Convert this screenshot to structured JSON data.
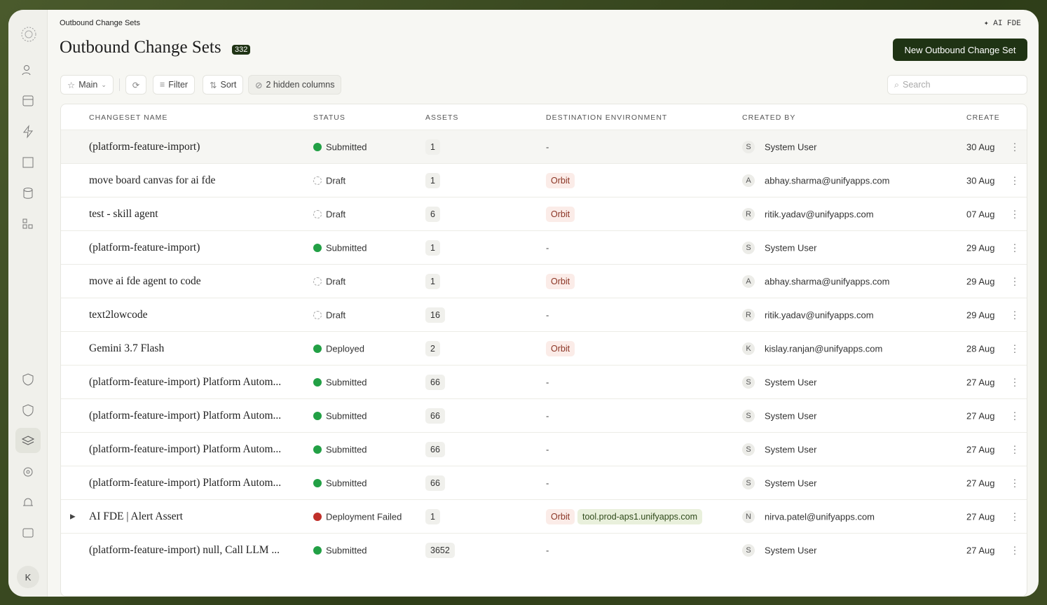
{
  "breadcrumb": "Outbound Change Sets",
  "assistant": "✦ AI FDE",
  "header": {
    "title": "Outbound Change Sets",
    "count": "332",
    "primary_button": "New Outbound Change Set"
  },
  "toolbar": {
    "view": "Main",
    "filter": "Filter",
    "sort": "Sort",
    "hidden_columns": "2 hidden columns",
    "search_placeholder": "Search"
  },
  "user_initial": "K",
  "table": {
    "columns": [
      "CHANGESET NAME",
      "STATUS",
      "ASSETS",
      "DESTINATION ENVIRONMENT",
      "CREATED BY",
      "CREATED"
    ],
    "rows": [
      {
        "name": "(platform-feature-import)",
        "status": "Submitted",
        "status_color": "#22a045",
        "assets": "1",
        "destination": "-",
        "avatar": "S",
        "created_by": "System User",
        "created": "30 Aug"
      },
      {
        "name": "move board canvas for ai fde",
        "status": "Draft",
        "status_color": "draft",
        "assets": "1",
        "destination": [
          {
            "label": "Orbit",
            "color": "#fbece8",
            "text_color": "#8a3424"
          }
        ],
        "avatar": "A",
        "created_by": "abhay.sharma@unifyapps.com",
        "created": "30 Aug"
      },
      {
        "name": "test - skill agent",
        "status": "Draft",
        "status_color": "draft",
        "assets": "6",
        "destination": [
          {
            "label": "Orbit",
            "color": "#fbece8",
            "text_color": "#8a3424"
          }
        ],
        "avatar": "R",
        "created_by": "ritik.yadav@unifyapps.com",
        "created": "07 Aug"
      },
      {
        "name": "(platform-feature-import)",
        "status": "Submitted",
        "status_color": "#22a045",
        "assets": "1",
        "destination": "-",
        "avatar": "S",
        "created_by": "System User",
        "created": "29 Aug"
      },
      {
        "name": "move ai fde agent to code",
        "status": "Draft",
        "status_color": "draft",
        "assets": "1",
        "destination": [
          {
            "label": "Orbit",
            "color": "#fbece8",
            "text_color": "#8a3424"
          }
        ],
        "avatar": "A",
        "created_by": "abhay.sharma@unifyapps.com",
        "created": "29 Aug"
      },
      {
        "name": "text2lowcode",
        "status": "Draft",
        "status_color": "draft",
        "assets": "16",
        "destination": "-",
        "avatar": "R",
        "created_by": "ritik.yadav@unifyapps.com",
        "created": "29 Aug"
      },
      {
        "name": "Gemini 3.7 Flash",
        "status": "Deployed",
        "status_color": "#22a045",
        "assets": "2",
        "destination": [
          {
            "label": "Orbit",
            "color": "#fbece8",
            "text_color": "#8a3424"
          }
        ],
        "avatar": "K",
        "created_by": "kislay.ranjan@unifyapps.com",
        "created": "28 Aug"
      },
      {
        "name": "(platform-feature-import) Platform Autom...",
        "status": "Submitted",
        "status_color": "#22a045",
        "assets": "66",
        "destination": "-",
        "avatar": "S",
        "created_by": "System User",
        "created": "27 Aug"
      },
      {
        "name": "(platform-feature-import) Platform Autom...",
        "status": "Submitted",
        "status_color": "#22a045",
        "assets": "66",
        "destination": "-",
        "avatar": "S",
        "created_by": "System User",
        "created": "27 Aug"
      },
      {
        "name": "(platform-feature-import) Platform Autom...",
        "status": "Submitted",
        "status_color": "#22a045",
        "assets": "66",
        "destination": "-",
        "avatar": "S",
        "created_by": "System User",
        "created": "27 Aug"
      },
      {
        "name": "(platform-feature-import) Platform Autom...",
        "status": "Submitted",
        "status_color": "#22a045",
        "assets": "66",
        "destination": "-",
        "avatar": "S",
        "created_by": "System User",
        "created": "27 Aug"
      },
      {
        "name": "AI FDE | Alert Assert",
        "expandable": true,
        "status": "Deployment Failed",
        "status_color": "#c0302a",
        "assets": "1",
        "destination": [
          {
            "label": "Orbit",
            "color": "#fbece8",
            "text_color": "#8a3424"
          },
          {
            "label": "tool.prod-aps1.unifyapps.com",
            "color": "#e9f0dc",
            "text_color": "#2f4a1a"
          }
        ],
        "avatar": "N",
        "created_by": "nirva.patel@unifyapps.com",
        "created": "27 Aug"
      },
      {
        "name": "(platform-feature-import) null, Call LLM ...",
        "status": "Submitted",
        "status_color": "#22a045",
        "assets": "3652",
        "destination": "-",
        "avatar": "S",
        "created_by": "System User",
        "created": "27 Aug"
      }
    ]
  }
}
